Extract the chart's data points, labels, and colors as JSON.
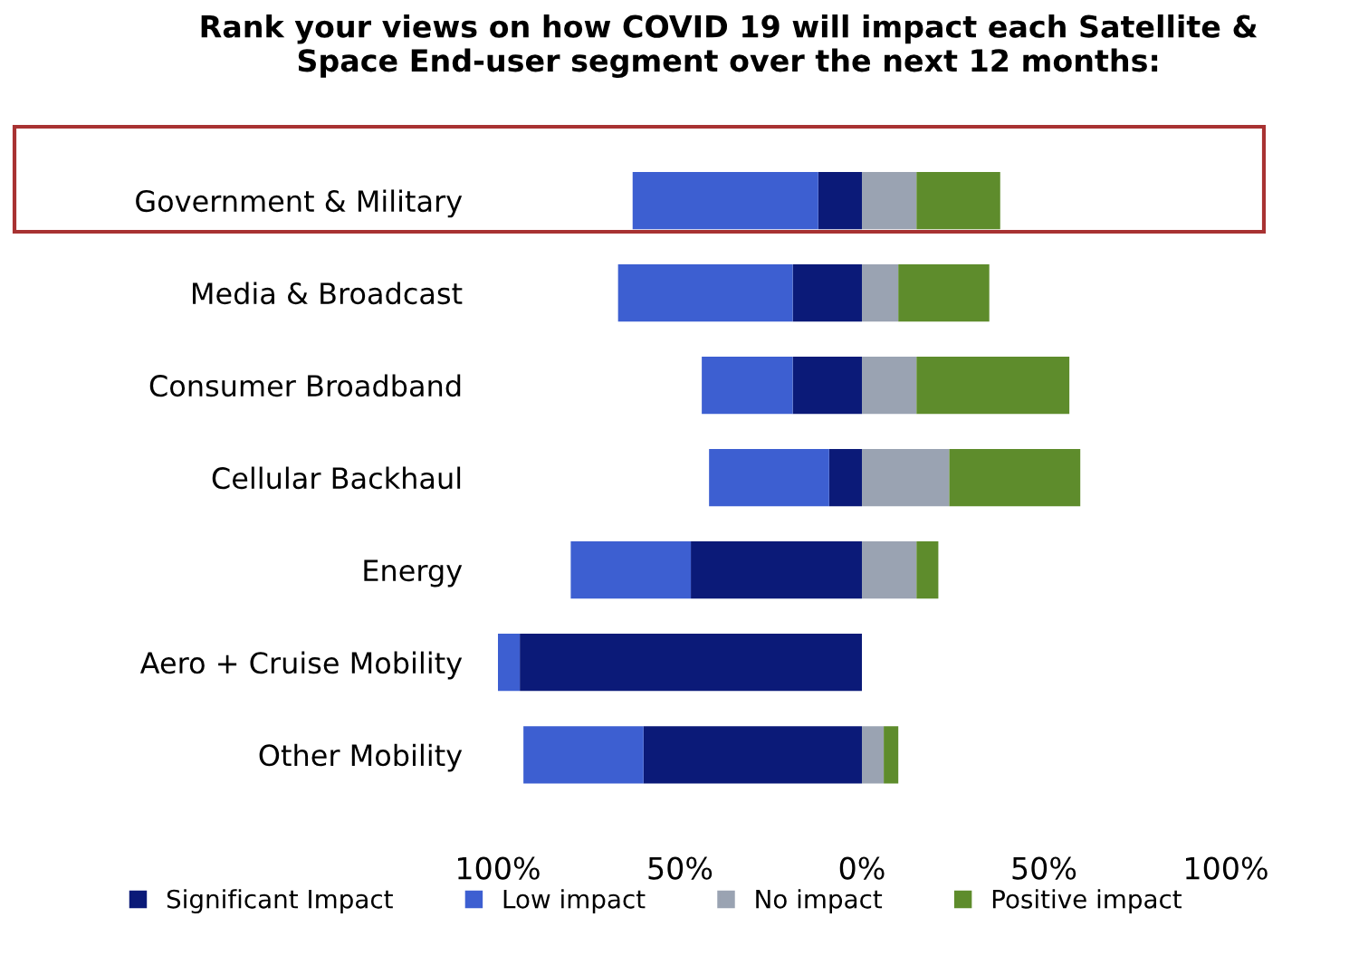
{
  "chart_data": {
    "type": "bar",
    "orientation": "horizontal",
    "stacked": true,
    "title": "Rank your views on how COVID 19 will impact each Satellite &\nSpace End-user segment over the next 12 months:",
    "categories": [
      "Government & Military",
      "Media & Broadcast",
      "Consumer Broadband",
      "Cellular Backhaul",
      "Energy",
      "Aero + Cruise Mobility",
      "Other Mobility"
    ],
    "series": [
      {
        "name": "Significant Impact",
        "color": "#0b1a78",
        "values": [
          -12,
          -19,
          -19,
          -9,
          -47,
          -94,
          -60
        ]
      },
      {
        "name": "Low impact",
        "color": "#3d5fd1",
        "values": [
          -51,
          -48,
          -25,
          -33,
          -33,
          -6,
          -33
        ]
      },
      {
        "name": "No impact",
        "color": "#9aa3b2",
        "values": [
          15,
          10,
          15,
          24,
          15,
          0,
          6
        ]
      },
      {
        "name": "Positive impact",
        "color": "#5e8c2c",
        "values": [
          23,
          25,
          42,
          36,
          6,
          0,
          4
        ]
      }
    ],
    "xlim": [
      -100,
      100
    ],
    "xticks": [
      {
        "value": -100,
        "label": "100%"
      },
      {
        "value": -50,
        "label": "50%"
      },
      {
        "value": 0,
        "label": "0%"
      },
      {
        "value": 50,
        "label": "50%"
      },
      {
        "value": 100,
        "label": "100%"
      }
    ],
    "grid": false,
    "legend": "bottom"
  }
}
